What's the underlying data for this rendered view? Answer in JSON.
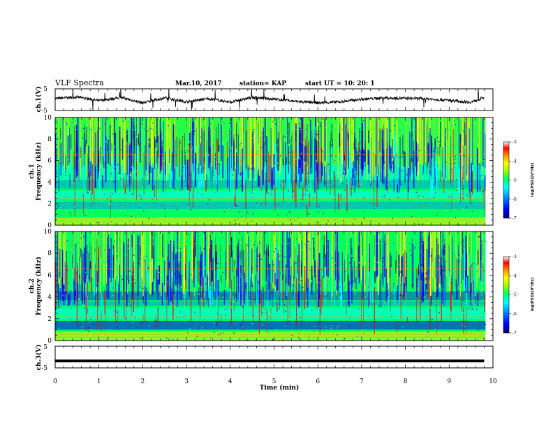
{
  "header": {
    "title": "VLF Spectra",
    "date": "Mar.10, 2017",
    "station": "station= KAP",
    "start": "start  UT =   10: 20: 1"
  },
  "chart_data": [
    {
      "type": "line",
      "panel": "ch1-waveform",
      "ylabel": "ch.1(V)",
      "ylim": [
        -5,
        5
      ],
      "ytick_labels": [
        "5",
        "-5"
      ],
      "xlim": [
        0,
        10
      ],
      "x": [
        0,
        0.5,
        1,
        1.5,
        2,
        2.5,
        3,
        3.5,
        4,
        4.5,
        5,
        5.5,
        6,
        6.5,
        7,
        7.5,
        8,
        8.5,
        9,
        9.5,
        9.8
      ],
      "values": [
        0.5,
        1.2,
        -0.5,
        1.0,
        -1.5,
        0.8,
        -1.0,
        0.5,
        -1.2,
        1.0,
        0.3,
        -0.8,
        -1.5,
        -1.0,
        0.2,
        0.8,
        0.6,
        0.4,
        -0.3,
        -1.2,
        1.0
      ]
    },
    {
      "type": "heatmap",
      "panel": "ch1-spectrogram",
      "ylabel": "ch.1\nFrequency (kHz)",
      "ylim": [
        0,
        10
      ],
      "ytick_labels": [
        "0",
        "2",
        "4",
        "6",
        "8",
        "10"
      ],
      "xlim": [
        0,
        10
      ],
      "colorbar": {
        "label": "log(PSD)(V²/Hz)",
        "range": [
          -7,
          -3
        ],
        "tick_labels": [
          "-3",
          "-4",
          "-5",
          "-6",
          "-7"
        ]
      }
    },
    {
      "type": "heatmap",
      "panel": "ch2-spectrogram",
      "ylabel": "ch.2\nFrequency (kHz)",
      "ylim": [
        0,
        10
      ],
      "ytick_labels": [
        "0",
        "2",
        "4",
        "6",
        "8",
        "10"
      ],
      "xlim": [
        0,
        10
      ],
      "colorbar": {
        "label": "log(PSD)(V²/Hz)",
        "range": [
          -7,
          -3
        ],
        "tick_labels": [
          "-3",
          "-4",
          "-5",
          "-6",
          "-7"
        ]
      }
    },
    {
      "type": "line",
      "panel": "ch3-waveform",
      "ylabel": "ch.3(V)",
      "ylim": [
        -5,
        5
      ],
      "ytick_labels": [
        "5",
        "-5"
      ],
      "xlim": [
        0,
        10
      ],
      "x": [
        0,
        9.8
      ],
      "values": [
        -1.8,
        -1.8
      ]
    }
  ],
  "xaxis": {
    "label": "Time (min)",
    "tick_labels": [
      "0",
      "1",
      "2",
      "3",
      "4",
      "5",
      "6",
      "7",
      "8",
      "9",
      "10"
    ]
  },
  "colors": {
    "colormap": [
      "#00007a",
      "#0000ff",
      "#0090ff",
      "#00ffff",
      "#00ff60",
      "#a0ff00",
      "#ffff00",
      "#ff9000",
      "#ff0000",
      "#ffffff"
    ]
  }
}
